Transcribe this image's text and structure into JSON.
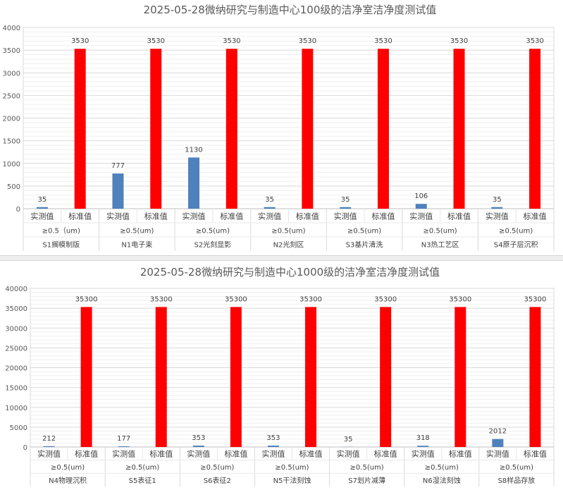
{
  "chart_data": [
    {
      "type": "bar",
      "title": "2025-05-28微纳研究与制造中心100级的洁净室洁净度测试值",
      "ylim": [
        0,
        4000
      ],
      "yticks": [
        "0",
        "500",
        "1000",
        "1500",
        "2000",
        "2500",
        "3000",
        "3500",
        "4000"
      ],
      "grid": true,
      "series": [
        {
          "name": "实测值",
          "color": "#4f81bd",
          "values": [
            35,
            777,
            1130,
            35,
            35,
            106,
            35
          ]
        },
        {
          "name": "标准值",
          "color": "#ff0000",
          "values": [
            3530,
            3530,
            3530,
            3530,
            3530,
            3530,
            3530
          ]
        }
      ],
      "data_labels": {
        "actual": [
          "35",
          "777",
          "1130",
          "35",
          "35",
          "106",
          "35"
        ],
        "standard": [
          "3530",
          "3530",
          "3530",
          "3530",
          "3530",
          "3530",
          "3530"
        ]
      },
      "groups": [
        {
          "size": "≥0.5（um)",
          "location": "S1搁模制版"
        },
        {
          "size": "≥0.5(um)",
          "location": "N1电子束"
        },
        {
          "size": "≥0.5(um)",
          "location": "S2光刻显影"
        },
        {
          "size": "≥0.5(um)",
          "location": "N2光刻区"
        },
        {
          "size": "≥0.5(um)",
          "location": "S3基片清洗"
        },
        {
          "size": "≥0.5(um)",
          "location": "N3热工艺区"
        },
        {
          "size": "≥0.5(um)",
          "location": "S4原子层沉积"
        }
      ]
    },
    {
      "type": "bar",
      "title": "2025-05-28微纳研究与制造中心1000级的洁净室洁净度测试值",
      "ylim": [
        0,
        40000
      ],
      "yticks": [
        "0",
        "5000",
        "10000",
        "15000",
        "20000",
        "25000",
        "30000",
        "35000",
        "40000"
      ],
      "grid": true,
      "series": [
        {
          "name": "实测值",
          "color": "#4f81bd",
          "values": [
            212,
            177,
            353,
            353,
            35,
            318,
            2012
          ]
        },
        {
          "name": "标准值",
          "color": "#ff0000",
          "values": [
            35300,
            35300,
            35300,
            35300,
            35300,
            35300,
            35300
          ]
        }
      ],
      "data_labels": {
        "actual": [
          "212",
          "177",
          "353",
          "353",
          "35",
          "318",
          "2012"
        ],
        "standard": [
          "35300",
          "35300",
          "35300",
          "35300",
          "35300",
          "35300",
          "35300"
        ]
      },
      "groups": [
        {
          "size": "≥0.5(um)",
          "location": "N4物理沉积"
        },
        {
          "size": "≥0.5(um)",
          "location": "S5表征1"
        },
        {
          "size": "≥0.5(um)",
          "location": "S6表征2"
        },
        {
          "size": "≥0.5(um)",
          "location": "N5干法刻蚀"
        },
        {
          "size": "≥0.5(um)",
          "location": "S7划片减薄"
        },
        {
          "size": "≥0.5(um)",
          "location": "N6湿法刻蚀"
        },
        {
          "size": "≥0.5(um)",
          "location": "S8样品存放"
        }
      ]
    }
  ]
}
